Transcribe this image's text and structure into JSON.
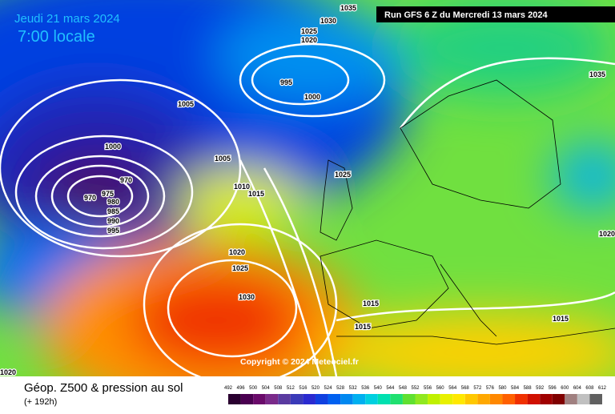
{
  "header": {
    "date": "Jeudi 21 mars 2024",
    "time": "7:00 locale",
    "run": "Run GFS 6 Z du Mercredi 13 mars 2024"
  },
  "copyright": "Copyright © 2024 Meteociel.fr",
  "footer": {
    "title": "Géop. Z500 & pression au sol",
    "lead": "(+ 192h)"
  },
  "isobar_labels": [
    1035,
    1030,
    1025,
    1020,
    995,
    1000,
    1005,
    1000,
    1005,
    970,
    975,
    970,
    980,
    985,
    990,
    995,
    1010,
    1015,
    1025,
    1020,
    1025,
    1030,
    1015,
    1015,
    1015,
    1020,
    1035,
    1020
  ],
  "scale": {
    "labels": [
      492,
      496,
      500,
      504,
      508,
      512,
      516,
      520,
      524,
      528,
      532,
      536,
      540,
      544,
      548,
      552,
      556,
      560,
      564,
      568,
      572,
      576,
      580,
      584,
      588,
      592,
      596,
      600,
      604,
      608,
      612
    ],
    "colors": [
      "#2a0030",
      "#4a0050",
      "#6a0a6a",
      "#7a2a8a",
      "#5a3aa0",
      "#3a3ab8",
      "#2a2ad0",
      "#1040e0",
      "#0060f0",
      "#0088f0",
      "#00b0f0",
      "#00d0e0",
      "#00e0b0",
      "#20e070",
      "#60e030",
      "#90e820",
      "#c0f000",
      "#e8f000",
      "#ffe800",
      "#ffc800",
      "#ffa800",
      "#ff8800",
      "#ff6000",
      "#f03000",
      "#d01000",
      "#a00000",
      "#800000",
      "#a08080",
      "#c0c0c0",
      "#606060"
    ]
  }
}
